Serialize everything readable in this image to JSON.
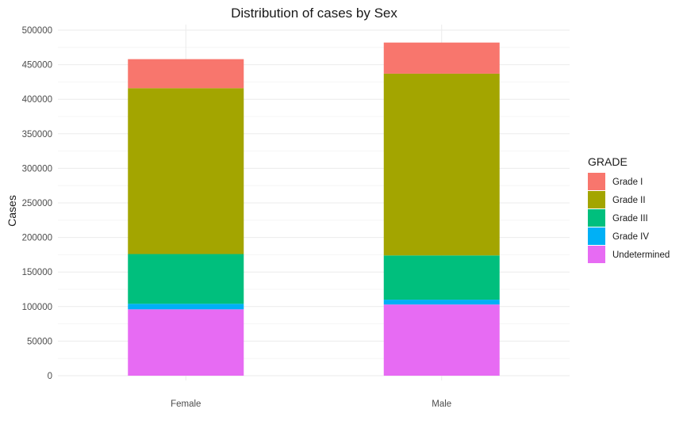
{
  "chart_data": {
    "type": "bar",
    "stacked": true,
    "title": "Distribution of cases by Sex",
    "xlabel": "",
    "ylabel": "Cases",
    "ylim": [
      0,
      500000
    ],
    "yticks": [
      "0",
      "50000",
      "100000",
      "150000",
      "200000",
      "250000",
      "300000",
      "350000",
      "400000",
      "450000",
      "500000"
    ],
    "categories": [
      "Female",
      "Male"
    ],
    "legend_title": "GRADE",
    "legend_position": "right",
    "grid": true,
    "series": [
      {
        "name": "Grade I",
        "color": "#F8766D",
        "values": [
          42000,
          45000
        ]
      },
      {
        "name": "Grade II",
        "color": "#A3A500",
        "values": [
          240000,
          263000
        ]
      },
      {
        "name": "Grade III",
        "color": "#00BF7D",
        "values": [
          72000,
          64000
        ]
      },
      {
        "name": "Grade IV",
        "color": "#00B0F6",
        "values": [
          8000,
          7000
        ]
      },
      {
        "name": "Undetermined",
        "color": "#E76BF3",
        "values": [
          96000,
          103000
        ]
      }
    ]
  }
}
